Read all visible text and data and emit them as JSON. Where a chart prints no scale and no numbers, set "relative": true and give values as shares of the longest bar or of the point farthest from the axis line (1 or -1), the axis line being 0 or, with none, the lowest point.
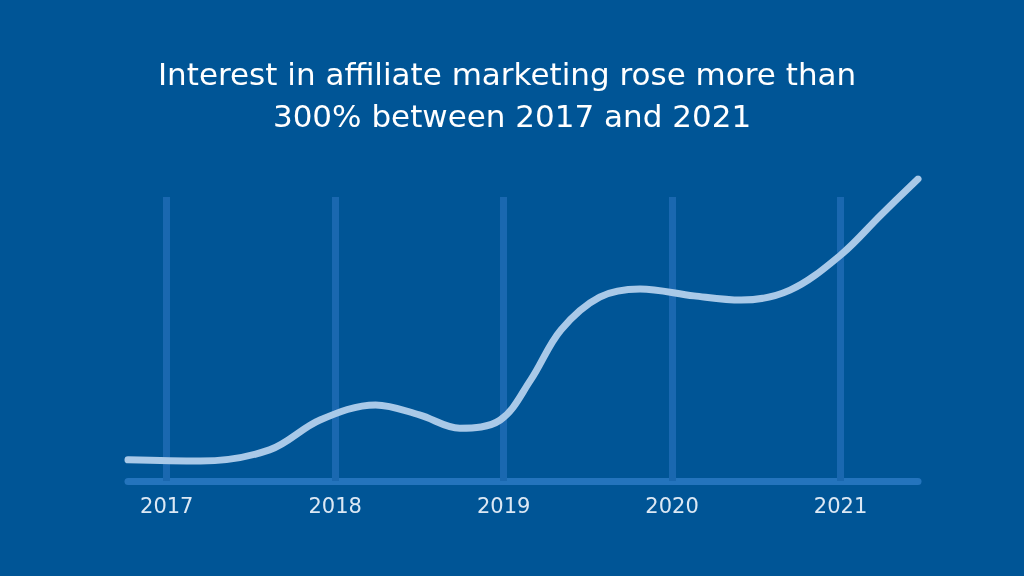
{
  "chart_data": {
    "type": "line",
    "title": "Interest in affiliate marketing rose more than 300% between 2017 and 2021",
    "relative": true,
    "x": [
      2016.77,
      2017.2,
      2017.61,
      2017.91,
      2018.24,
      2018.5,
      2018.74,
      2018.98,
      2019.16,
      2019.34,
      2019.57,
      2019.81,
      2020.13,
      2020.41,
      2020.7,
      2021.0,
      2021.24,
      2021.46
    ],
    "series": [
      {
        "color": "#a9c9e8",
        "values": [
          0.07,
          0.066,
          0.103,
          0.202,
          0.252,
          0.219,
          0.175,
          0.202,
          0.334,
          0.5,
          0.609,
          0.636,
          0.613,
          0.599,
          0.632,
          0.748,
          0.881,
          1.0
        ]
      }
    ],
    "xlim": [
      2016.77,
      2021.46
    ],
    "xticks": [
      2017,
      2018,
      2019,
      2020,
      2021
    ],
    "grid": "x",
    "marker": "none",
    "line_style": "solid"
  }
}
